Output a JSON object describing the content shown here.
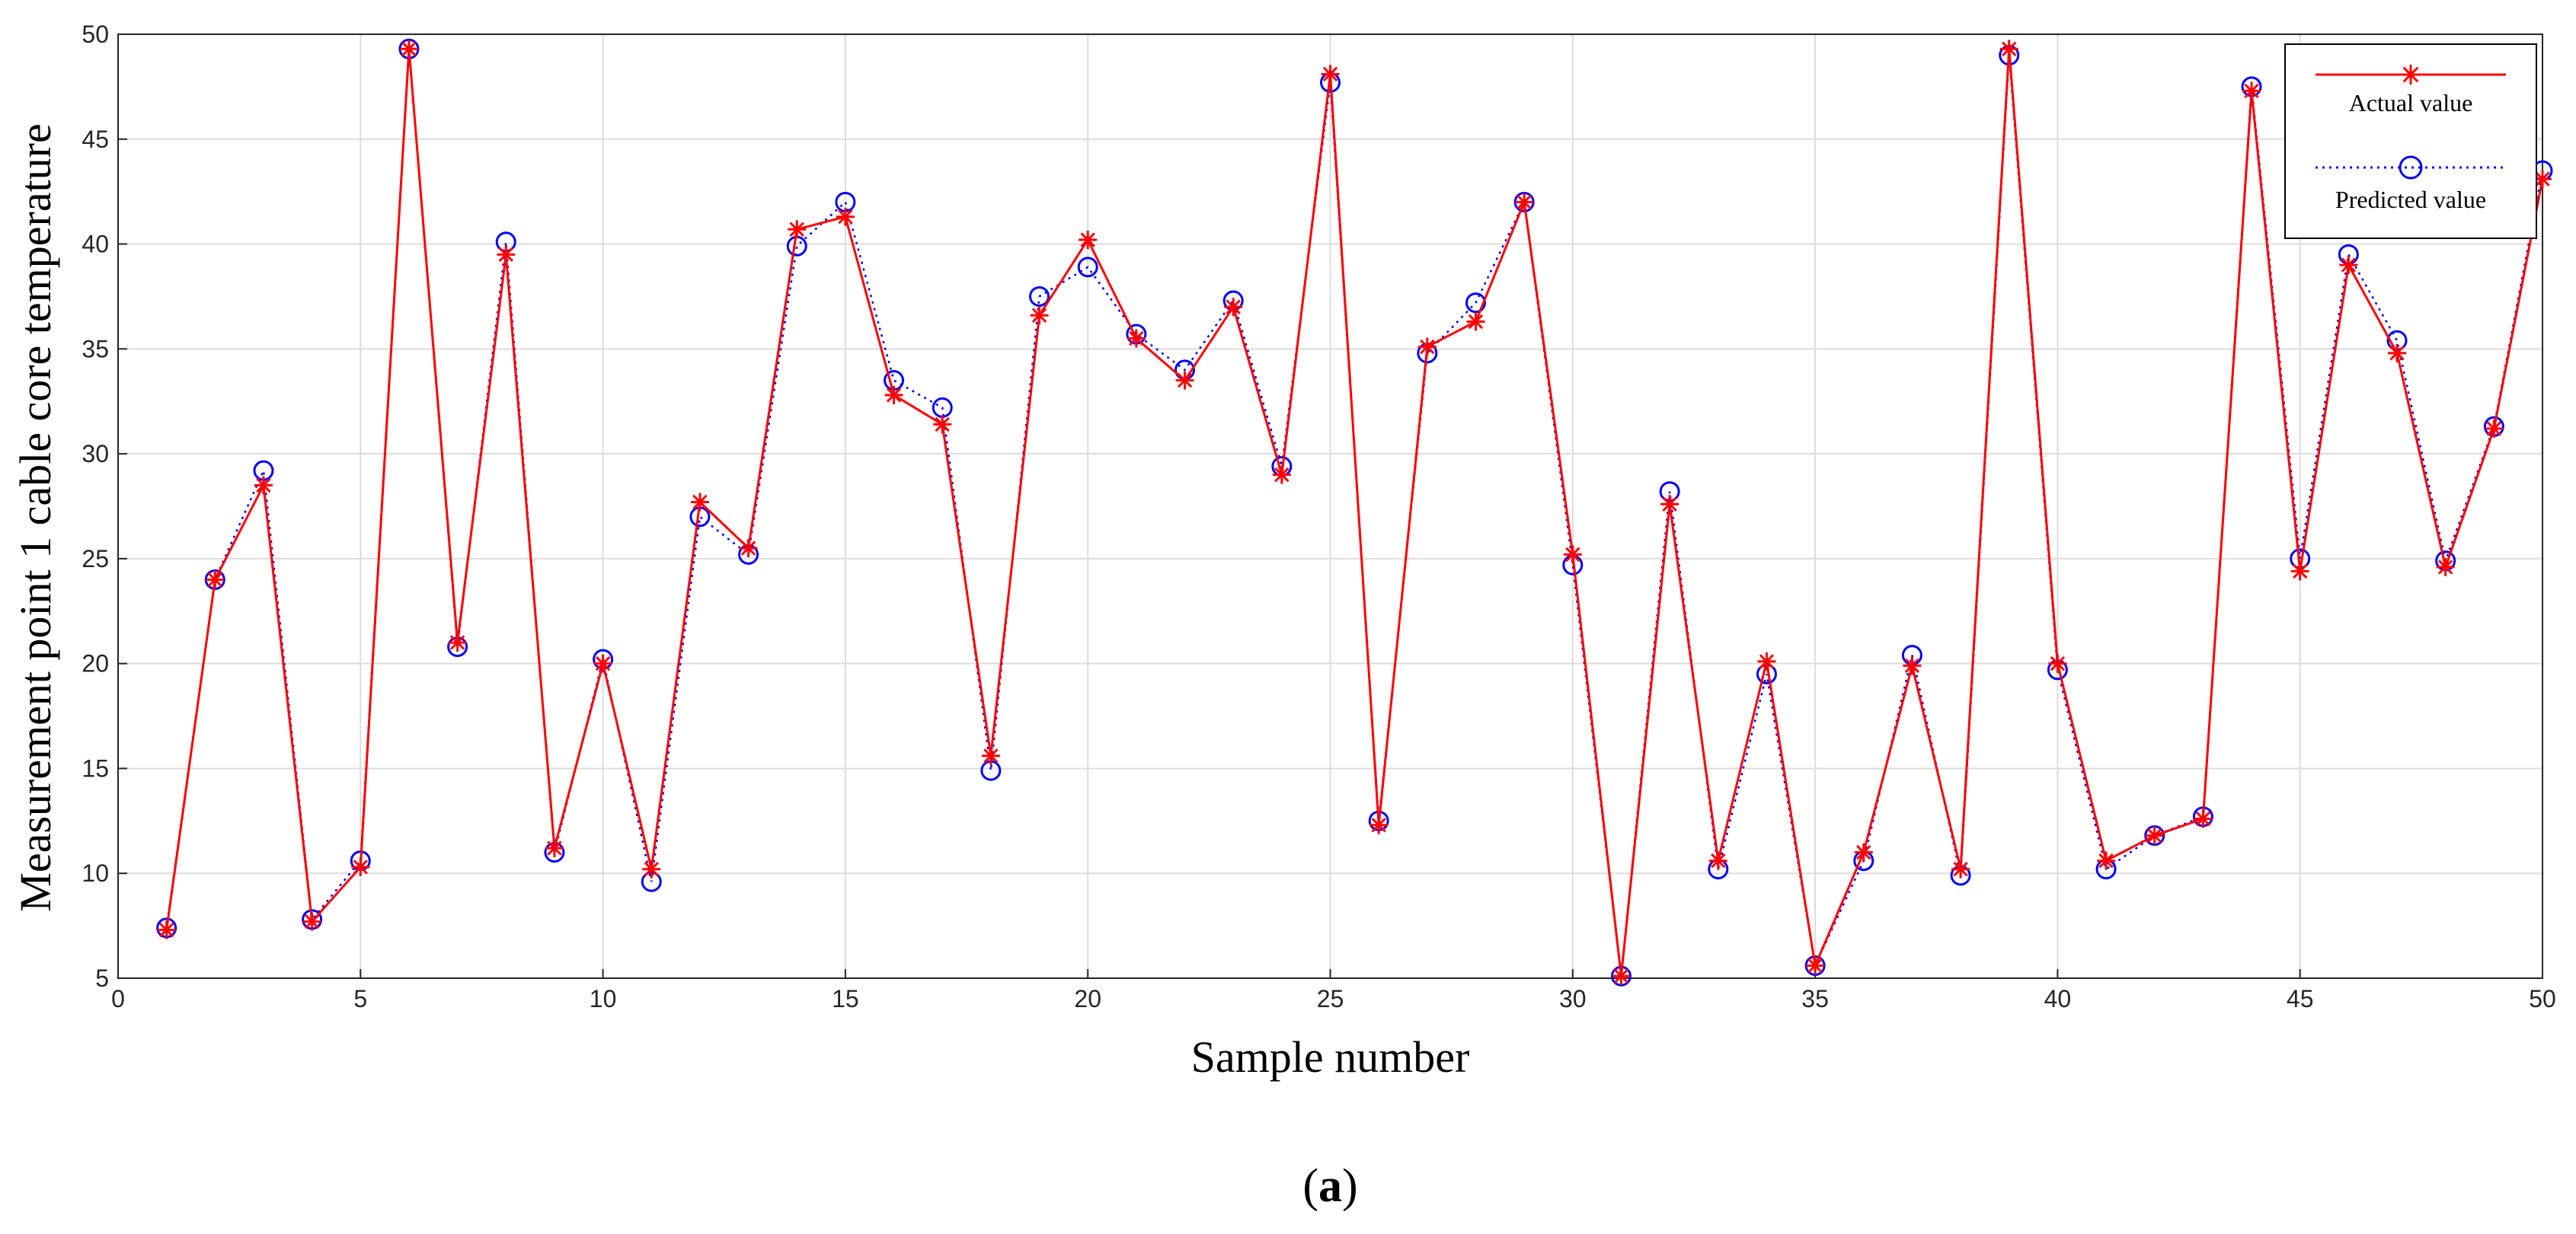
{
  "chart_data": {
    "type": "line",
    "xlabel": "Sample number",
    "ylabel": "Measurement  point  1  cable  core  temperature",
    "xlim": [
      0,
      50
    ],
    "ylim": [
      5,
      50
    ],
    "xticks": [
      0,
      5,
      10,
      15,
      20,
      25,
      30,
      35,
      40,
      45,
      50
    ],
    "yticks": [
      5,
      10,
      15,
      20,
      25,
      30,
      35,
      40,
      45,
      50
    ],
    "grid": true,
    "legend_position": "top-right",
    "caption_pre": "(",
    "caption_bold": "a",
    "caption_post": ")",
    "x": [
      1,
      2,
      3,
      4,
      5,
      6,
      7,
      8,
      9,
      10,
      11,
      12,
      13,
      14,
      15,
      16,
      17,
      18,
      19,
      20,
      21,
      22,
      23,
      24,
      25,
      26,
      27,
      28,
      29,
      30,
      31,
      32,
      33,
      34,
      35,
      36,
      37,
      38,
      39,
      40,
      41,
      42,
      43,
      44,
      45,
      46,
      47,
      48,
      49,
      50
    ],
    "series": [
      {
        "name": "Actual value",
        "color": "#ff0000",
        "line_style": "solid",
        "marker": "asterisk",
        "values": [
          7.3,
          24.0,
          28.5,
          7.7,
          10.3,
          49.3,
          21.0,
          39.5,
          11.2,
          20.0,
          10.2,
          27.7,
          25.5,
          40.7,
          41.3,
          32.8,
          31.4,
          15.6,
          36.6,
          40.2,
          35.5,
          33.5,
          37.0,
          29.0,
          48.1,
          12.3,
          35.1,
          36.3,
          42.0,
          25.2,
          5.1,
          27.6,
          10.6,
          20.1,
          5.6,
          11.0,
          19.9,
          10.2,
          49.3,
          20.0,
          10.6,
          11.8,
          12.6,
          47.3,
          24.4,
          39.0,
          34.8,
          24.6,
          31.2,
          43.1
        ]
      },
      {
        "name": "Predicted value",
        "color": "#0000ff",
        "line_style": "dotted",
        "marker": "circle",
        "values": [
          7.4,
          24.0,
          29.2,
          7.8,
          10.6,
          49.3,
          20.8,
          40.1,
          11.0,
          20.2,
          9.6,
          27.0,
          25.2,
          39.9,
          42.0,
          33.5,
          32.2,
          14.9,
          37.5,
          38.9,
          35.7,
          34.0,
          37.3,
          29.4,
          47.7,
          12.5,
          34.8,
          37.2,
          42.0,
          24.7,
          5.1,
          28.2,
          10.2,
          19.5,
          5.6,
          10.6,
          20.4,
          9.9,
          49.0,
          19.7,
          10.2,
          11.8,
          12.7,
          47.5,
          25.0,
          39.5,
          35.4,
          24.9,
          31.3,
          43.5
        ]
      }
    ]
  }
}
